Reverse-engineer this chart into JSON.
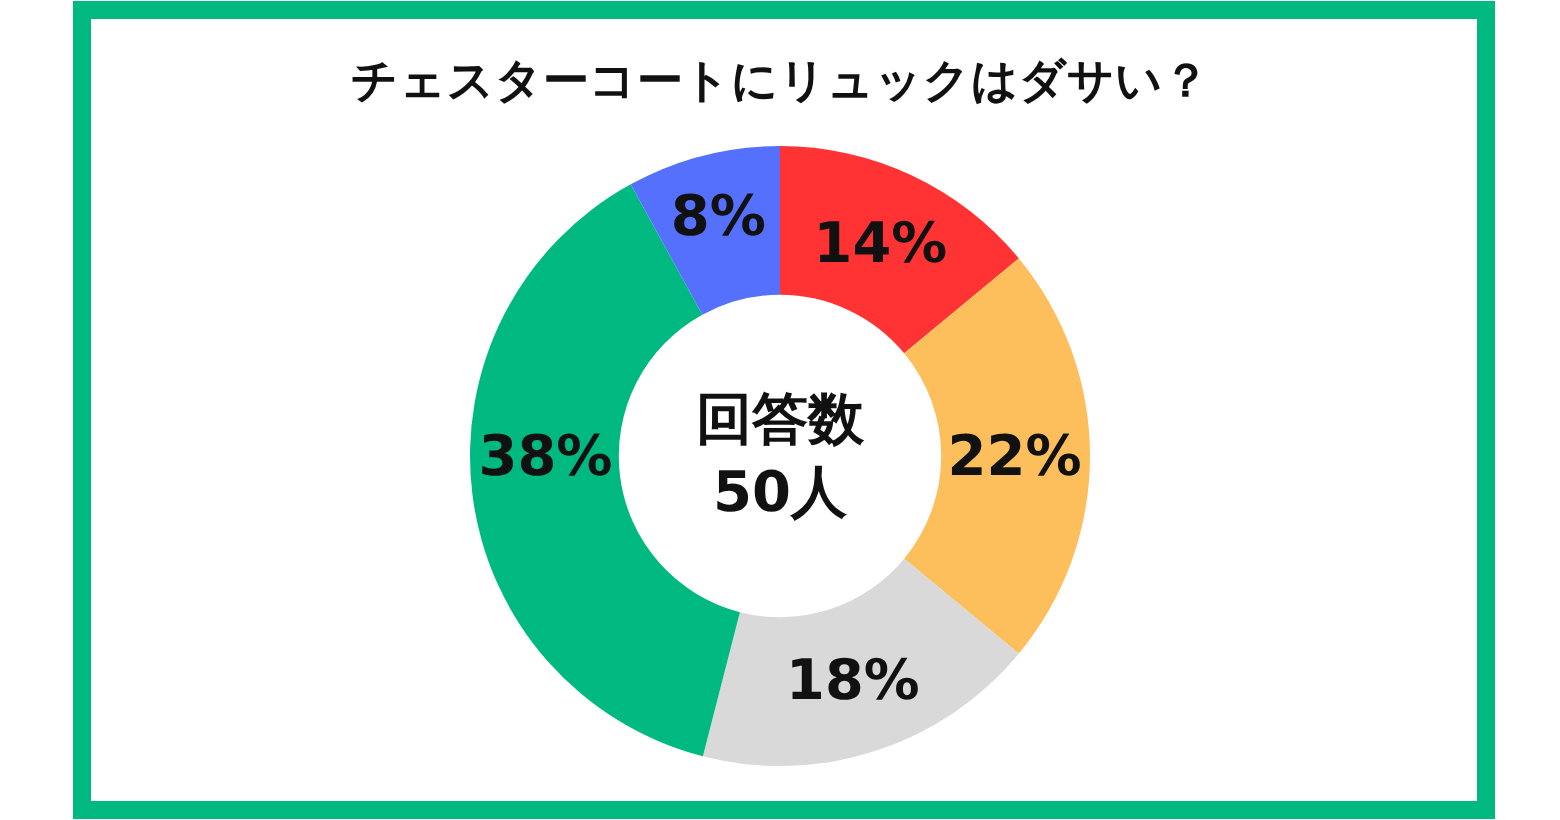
{
  "chart_data": {
    "type": "donut",
    "title": "チェスターコートにリュックはダサい？",
    "categories": [
      null,
      null,
      null,
      null,
      null
    ],
    "values": [
      14,
      22,
      18,
      38,
      8
    ],
    "colors": [
      "#ff3333",
      "#fdbe5c",
      "#d9d9d9",
      "#00b981",
      "#5470fd"
    ],
    "value_labels": [
      "14%",
      "22%",
      "18%",
      "38%",
      "8%"
    ],
    "annotations": [
      "回答数\n50人"
    ]
  }
}
